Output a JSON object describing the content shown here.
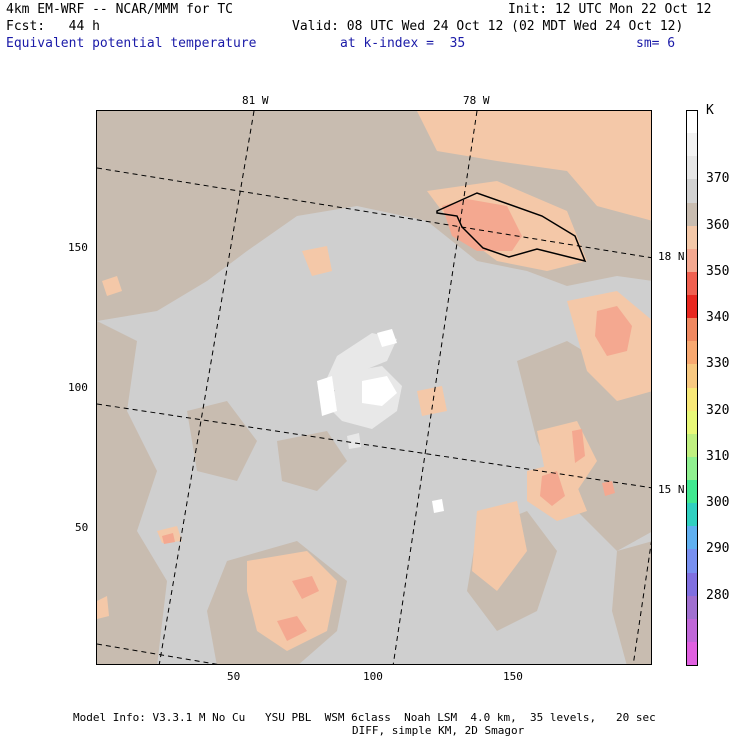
{
  "header": {
    "model": "4km EM-WRF -- NCAR/MMM for TC",
    "init": "Init: 12 UTC Mon 22 Oct 12",
    "fcst": "Fcst:   44 h",
    "valid": "Valid: 08 UTC Wed 24 Oct 12 (02 MDT Wed 24 Oct 12)",
    "field": "Equivalent potential temperature",
    "level": "at k-index =  35",
    "smooth": "sm= 6"
  },
  "map": {
    "lon_labels": [
      "81 W",
      "78 W"
    ],
    "lat_labels": [
      "18 N",
      "15 N"
    ],
    "y_ticks": [
      "150",
      "100",
      "50"
    ],
    "x_ticks": [
      "50",
      "100",
      "150"
    ],
    "colors": {
      "background": "#cfcfcf",
      "tan": "#c8bcb0",
      "peach": "#f4c8a8",
      "salmon": "#f4a890",
      "light": "#e8e8e8",
      "white": "#ffffff"
    }
  },
  "colorbar": {
    "unit": "K",
    "labels": [
      "370",
      "360",
      "350",
      "340",
      "330",
      "320",
      "310",
      "300",
      "290",
      "280"
    ],
    "colors": [
      "#ffffff",
      "#f2f2f2",
      "#e6e6e6",
      "#d2d2d2",
      "#c8bcb0",
      "#f4c8a8",
      "#f4a890",
      "#f06050",
      "#e82820",
      "#f08860",
      "#f8a870",
      "#f8c880",
      "#f8e878",
      "#e8f878",
      "#c0f080",
      "#90f090",
      "#40e890",
      "#30d0c0",
      "#60b0f0",
      "#7890f0",
      "#8070e0",
      "#a070d0",
      "#c068d8",
      "#e060e0"
    ]
  },
  "footer": {
    "line1": "Model Info: V3.3.1 M No Cu   YSU PBL  WSM 6class  Noah LSM  4.0 km,  35 levels,   20 sec",
    "line2": "DIFF, simple KM, 2D Smagor"
  }
}
